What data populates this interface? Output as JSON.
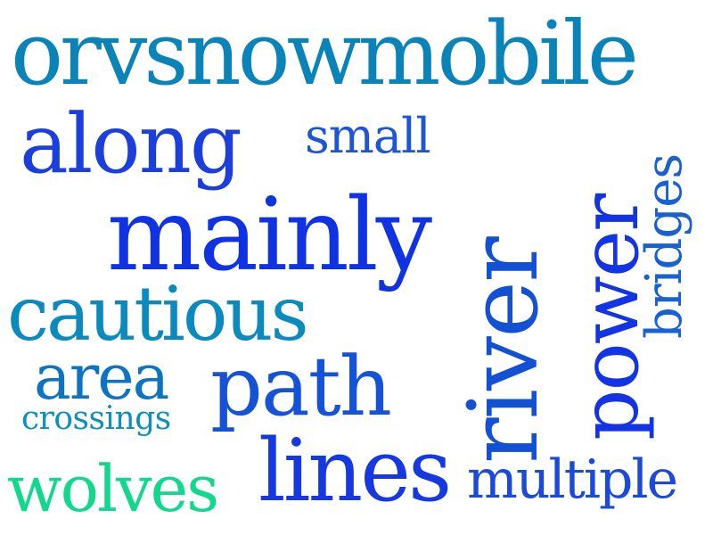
{
  "words": [
    {
      "text": "orvsnowmobile",
      "color": "#0a83b8"
    },
    {
      "text": "along",
      "color": "#1a3fdc"
    },
    {
      "text": "small",
      "color": "#1e55d8"
    },
    {
      "text": "mainly",
      "color": "#0f33e2"
    },
    {
      "text": "river",
      "color": "#1250d6"
    },
    {
      "text": "power",
      "color": "#1234e6"
    },
    {
      "text": "bridges",
      "color": "#1761d2"
    },
    {
      "text": "cautious",
      "color": "#0b8ac0"
    },
    {
      "text": "area",
      "color": "#0d73c2"
    },
    {
      "text": "crossings",
      "color": "#0c90be"
    },
    {
      "text": "path",
      "color": "#1452d8"
    },
    {
      "text": "wolves",
      "color": "#12d88e"
    },
    {
      "text": "lines",
      "color": "#1538e0"
    },
    {
      "text": "multiple",
      "color": "#1a4adc"
    }
  ]
}
